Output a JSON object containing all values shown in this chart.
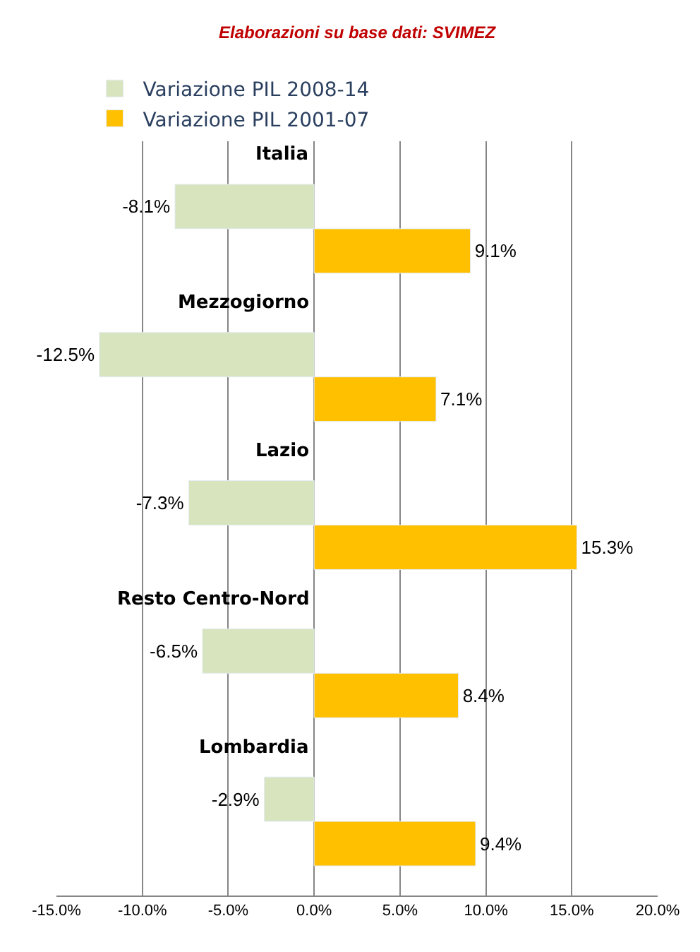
{
  "chart_data": {
    "type": "bar",
    "orientation": "horizontal",
    "categories": [
      "Italia",
      "Mezzogiorno",
      "Lazio",
      "Resto Centro-Nord",
      "Lombardia"
    ],
    "series": [
      {
        "name": "Variazione PIL 2001-07",
        "color": "#ffc000",
        "values": [
          9.1,
          7.1,
          15.3,
          8.4,
          9.4
        ],
        "value_labels": [
          "9.1%",
          "7.1%",
          "15.3%",
          "8.4%",
          "9.4%"
        ]
      },
      {
        "name": "Variazione PIL 2008-14",
        "color": "#d7e4bd",
        "values": [
          -8.1,
          -12.5,
          -7.3,
          -6.5,
          -2.9
        ],
        "value_labels": [
          "-8.1%",
          "-12.5%",
          "-7.3%",
          "-6.5%",
          "-2.9%"
        ]
      }
    ],
    "xlim": [
      -15,
      20
    ],
    "xticks": [
      {
        "value": -15,
        "label": "-15.0%"
      },
      {
        "value": -10,
        "label": "-10.0%"
      },
      {
        "value": -5,
        "label": "-5.0%"
      },
      {
        "value": 0,
        "label": "0.0%"
      },
      {
        "value": 5,
        "label": "5.0%"
      },
      {
        "value": 10,
        "label": "10.0%"
      },
      {
        "value": 15,
        "label": "15.0%"
      },
      {
        "value": 20,
        "label": "20.0%"
      }
    ],
    "grid": "x",
    "legend": "top left",
    "annotations": [
      "Elaborazioni su base dati: SVIMEZ"
    ]
  }
}
